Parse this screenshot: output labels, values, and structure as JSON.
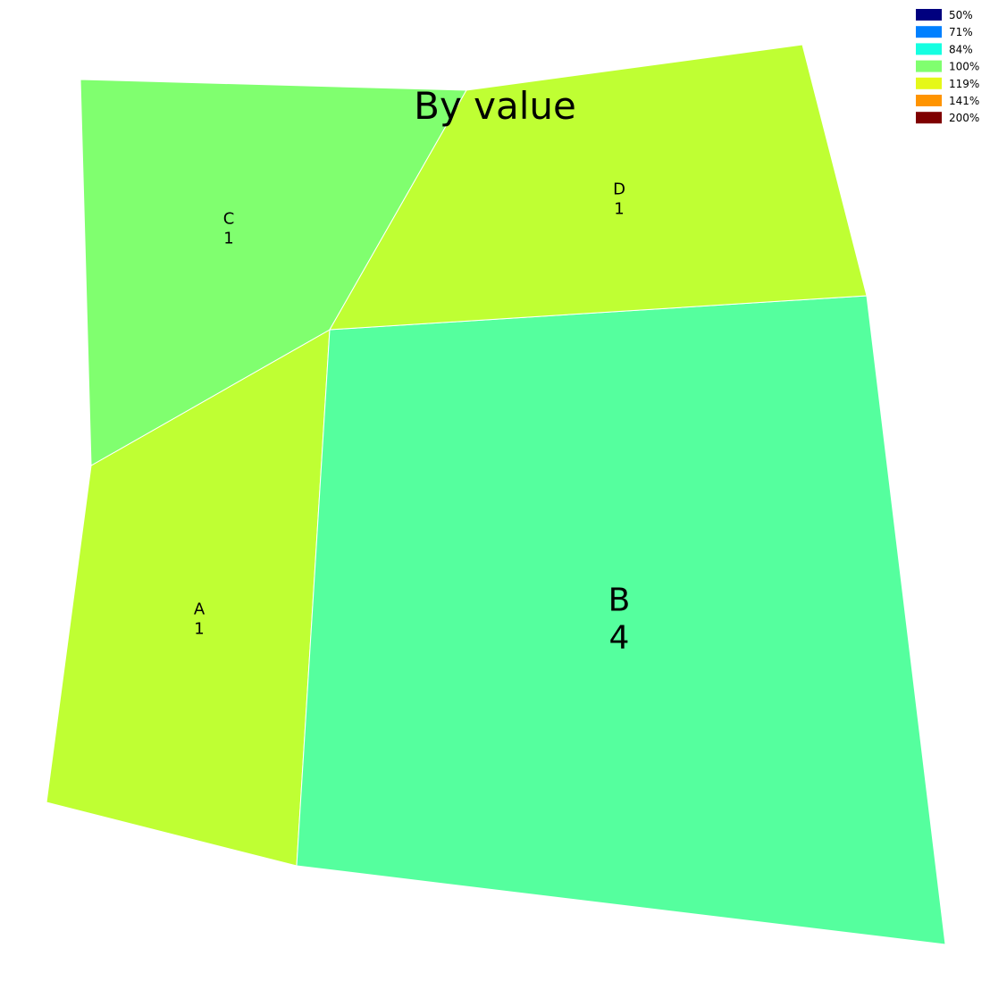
{
  "chart_data": {
    "type": "voronoi-treemap",
    "title": "By value",
    "cells": [
      {
        "name": "A",
        "value": 1,
        "color": "#bfff33"
      },
      {
        "name": "B",
        "value": 4,
        "color": "#55ff9e"
      },
      {
        "name": "C",
        "value": 1,
        "color": "#80ff6f"
      },
      {
        "name": "D",
        "value": 1,
        "color": "#bfff33"
      }
    ],
    "legend": {
      "placement": "top-right",
      "entries": [
        {
          "label": "50%",
          "color": "#00007f"
        },
        {
          "label": "71%",
          "color": "#0080ff"
        },
        {
          "label": "84%",
          "color": "#15ffe1"
        },
        {
          "label": "100%",
          "color": "#80ff6f"
        },
        {
          "label": "119%",
          "color": "#e5f819"
        },
        {
          "label": "141%",
          "color": "#ff9400"
        },
        {
          "label": "200%",
          "color": "#7f0000"
        }
      ]
    }
  }
}
